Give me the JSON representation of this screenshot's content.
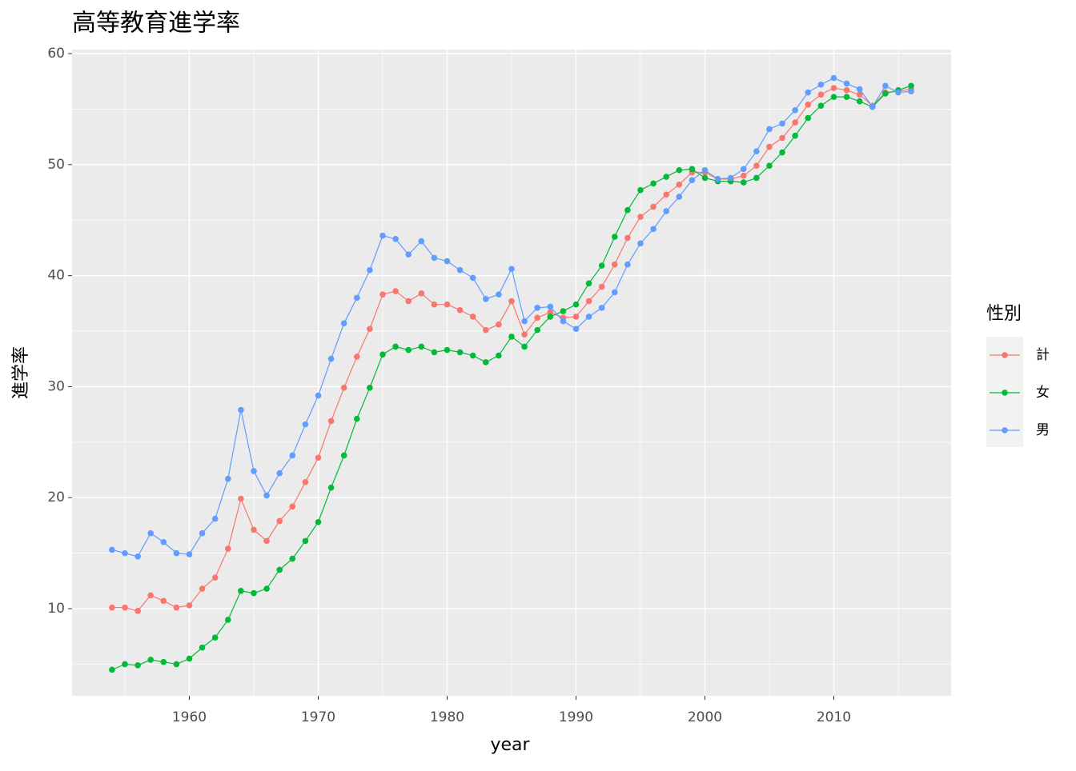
{
  "chart_data": {
    "type": "line",
    "title": "高等教育進学率",
    "x_label": "year",
    "y_label": "進学率",
    "x": [
      1954,
      1955,
      1956,
      1957,
      1958,
      1959,
      1960,
      1961,
      1962,
      1963,
      1964,
      1965,
      1966,
      1967,
      1968,
      1969,
      1970,
      1971,
      1972,
      1973,
      1974,
      1975,
      1976,
      1977,
      1978,
      1979,
      1980,
      1981,
      1982,
      1983,
      1984,
      1985,
      1986,
      1987,
      1988,
      1989,
      1990,
      1991,
      1992,
      1993,
      1994,
      1995,
      1996,
      1997,
      1998,
      1999,
      2000,
      2001,
      2002,
      2003,
      2004,
      2005,
      2006,
      2007,
      2008,
      2009,
      2010,
      2011,
      2012,
      2013,
      2014,
      2015,
      2016
    ],
    "series": [
      {
        "name": "計",
        "color": "#F8766D",
        "values": [
          10.1,
          10.1,
          9.8,
          11.2,
          10.7,
          10.1,
          10.3,
          11.8,
          12.8,
          15.4,
          19.9,
          17.1,
          16.1,
          17.9,
          19.2,
          21.4,
          23.6,
          26.9,
          29.9,
          32.7,
          35.2,
          38.3,
          38.6,
          37.7,
          38.4,
          37.4,
          37.4,
          36.9,
          36.3,
          35.1,
          35.6,
          37.7,
          34.7,
          36.2,
          36.7,
          36.2,
          36.3,
          37.7,
          39.0,
          41.0,
          43.4,
          45.3,
          46.2,
          47.3,
          48.2,
          49.3,
          49.3,
          48.7,
          48.7,
          49.0,
          49.9,
          51.6,
          52.4,
          53.8,
          55.4,
          56.3,
          56.9,
          56.7,
          56.3,
          55.3,
          56.5,
          56.6,
          56.8
        ]
      },
      {
        "name": "女",
        "color": "#00BA38",
        "values": [
          4.5,
          5.0,
          4.9,
          5.4,
          5.2,
          5.0,
          5.5,
          6.5,
          7.4,
          9.0,
          11.6,
          11.4,
          11.8,
          13.5,
          14.5,
          16.1,
          17.8,
          20.9,
          23.8,
          27.1,
          29.9,
          32.9,
          33.6,
          33.3,
          33.6,
          33.1,
          33.3,
          33.1,
          32.8,
          32.2,
          32.8,
          34.5,
          33.6,
          35.1,
          36.3,
          36.8,
          37.4,
          39.3,
          40.9,
          43.5,
          45.9,
          47.7,
          48.3,
          48.9,
          49.5,
          49.6,
          48.8,
          48.5,
          48.5,
          48.4,
          48.8,
          49.9,
          51.1,
          52.6,
          54.2,
          55.3,
          56.1,
          56.1,
          55.7,
          55.2,
          56.4,
          56.7,
          57.1
        ]
      },
      {
        "name": "男",
        "color": "#619CFF",
        "values": [
          15.3,
          15.0,
          14.7,
          16.8,
          16.0,
          15.0,
          14.9,
          16.8,
          18.1,
          21.7,
          27.9,
          22.4,
          20.2,
          22.2,
          23.8,
          26.6,
          29.2,
          32.5,
          35.7,
          38.0,
          40.5,
          43.6,
          43.3,
          41.9,
          43.1,
          41.6,
          41.3,
          40.5,
          39.8,
          37.9,
          38.3,
          40.6,
          35.9,
          37.1,
          37.2,
          35.9,
          35.2,
          36.3,
          37.1,
          38.5,
          41.0,
          42.9,
          44.2,
          45.8,
          47.1,
          48.6,
          49.5,
          48.7,
          48.8,
          49.6,
          51.2,
          53.2,
          53.7,
          54.9,
          56.5,
          57.2,
          57.8,
          57.3,
          56.8,
          55.2,
          57.1,
          56.5,
          56.6
        ]
      }
    ],
    "legend_title": "性別",
    "xlim": [
      1950.9,
      2019.1
    ],
    "xticks": [
      1960,
      1970,
      1980,
      1990,
      2000,
      2010
    ],
    "xminor_ticks": [
      1955,
      1965,
      1975,
      1985,
      1995,
      2005,
      2015
    ],
    "ylim": [
      2.15,
      60.36
    ],
    "yticks": [
      10,
      20,
      30,
      40,
      50,
      60
    ],
    "yminor_ticks": [
      5,
      15,
      25,
      35,
      45,
      55
    ],
    "grid": true
  }
}
